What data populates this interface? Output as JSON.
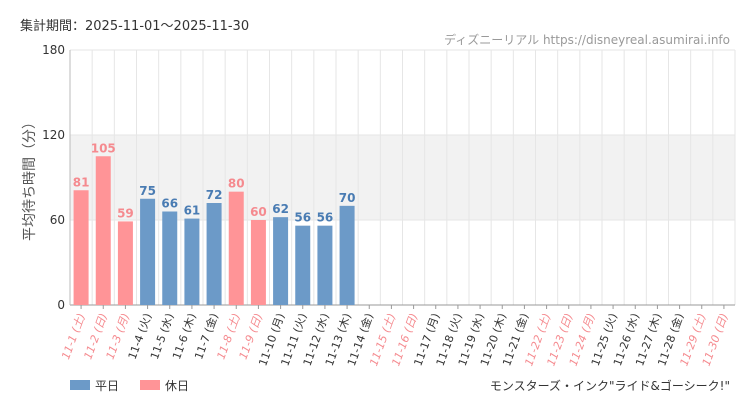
{
  "header": {
    "period": "集計期間：2025-11-01～2025-11-30",
    "source": "ディズニーリアル https://disneyreal.asumirai.info"
  },
  "footer": {
    "attraction": "モンスターズ・インク\"ライド&ゴーシーク!\""
  },
  "colors": {
    "weekday": "#6c9ac8",
    "holiday": "#ff9497",
    "weekday_label": "#4a7cb3",
    "holiday_label": "#f58a8f",
    "tick_label": "#333333",
    "band": "#f2f2f2",
    "grid": "#e6e6e6"
  },
  "chart_data": {
    "type": "bar",
    "title": "",
    "xlabel": "",
    "ylabel": "平均待ち時間（分）",
    "ylim": [
      0,
      180
    ],
    "yticks": [
      0,
      60,
      120,
      180
    ],
    "shaded_band": [
      60,
      120
    ],
    "legend": {
      "position": "bottom-left",
      "items": [
        {
          "key": "weekday",
          "label": "平日"
        },
        {
          "key": "holiday",
          "label": "休日"
        }
      ]
    },
    "categories": [
      "11-1 (土)",
      "11-2 (日)",
      "11-3 (月)",
      "11-4 (火)",
      "11-5 (水)",
      "11-6 (木)",
      "11-7 (金)",
      "11-8 (土)",
      "11-9 (日)",
      "11-10 (月)",
      "11-11 (火)",
      "11-12 (水)",
      "11-13 (木)",
      "11-14 (金)",
      "11-15 (土)",
      "11-16 (日)",
      "11-17 (月)",
      "11-18 (火)",
      "11-19 (水)",
      "11-20 (木)",
      "11-21 (金)",
      "11-22 (土)",
      "11-23 (日)",
      "11-24 (月)",
      "11-25 (火)",
      "11-26 (水)",
      "11-27 (木)",
      "11-28 (金)",
      "11-29 (土)",
      "11-30 (日)"
    ],
    "day_type": [
      "holiday",
      "holiday",
      "holiday",
      "weekday",
      "weekday",
      "weekday",
      "weekday",
      "holiday",
      "holiday",
      "weekday",
      "weekday",
      "weekday",
      "weekday",
      "weekday",
      "holiday",
      "holiday",
      "weekday",
      "weekday",
      "weekday",
      "weekday",
      "weekday",
      "holiday",
      "holiday",
      "holiday",
      "weekday",
      "weekday",
      "weekday",
      "weekday",
      "holiday",
      "holiday"
    ],
    "values": [
      81,
      105,
      59,
      75,
      66,
      61,
      72,
      80,
      60,
      62,
      56,
      56,
      70,
      null,
      null,
      null,
      null,
      null,
      null,
      null,
      null,
      null,
      null,
      null,
      null,
      null,
      null,
      null,
      null,
      null
    ]
  }
}
